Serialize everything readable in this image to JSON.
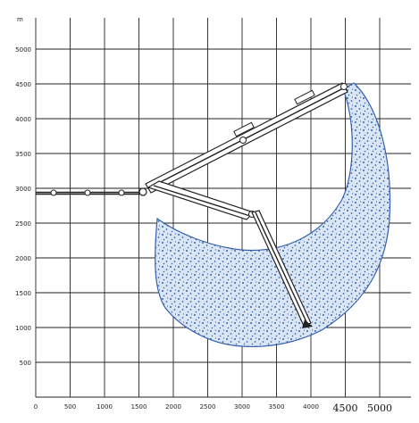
{
  "diagram": {
    "unit_label": "m",
    "x_ticks": [
      "0",
      "500",
      "1000",
      "1500",
      "2000",
      "2500",
      "3000",
      "3500",
      "4000",
      "4500",
      "5000"
    ],
    "y_ticks": [
      "500",
      "1000",
      "1500",
      "2000",
      "2500",
      "3000",
      "3500",
      "4000",
      "4500",
      "5000"
    ],
    "colors": {
      "grid": "#222222",
      "area_fill": "#dbe6f5",
      "area_stipple": "#3560b0",
      "boom_line": "#222222"
    }
  }
}
